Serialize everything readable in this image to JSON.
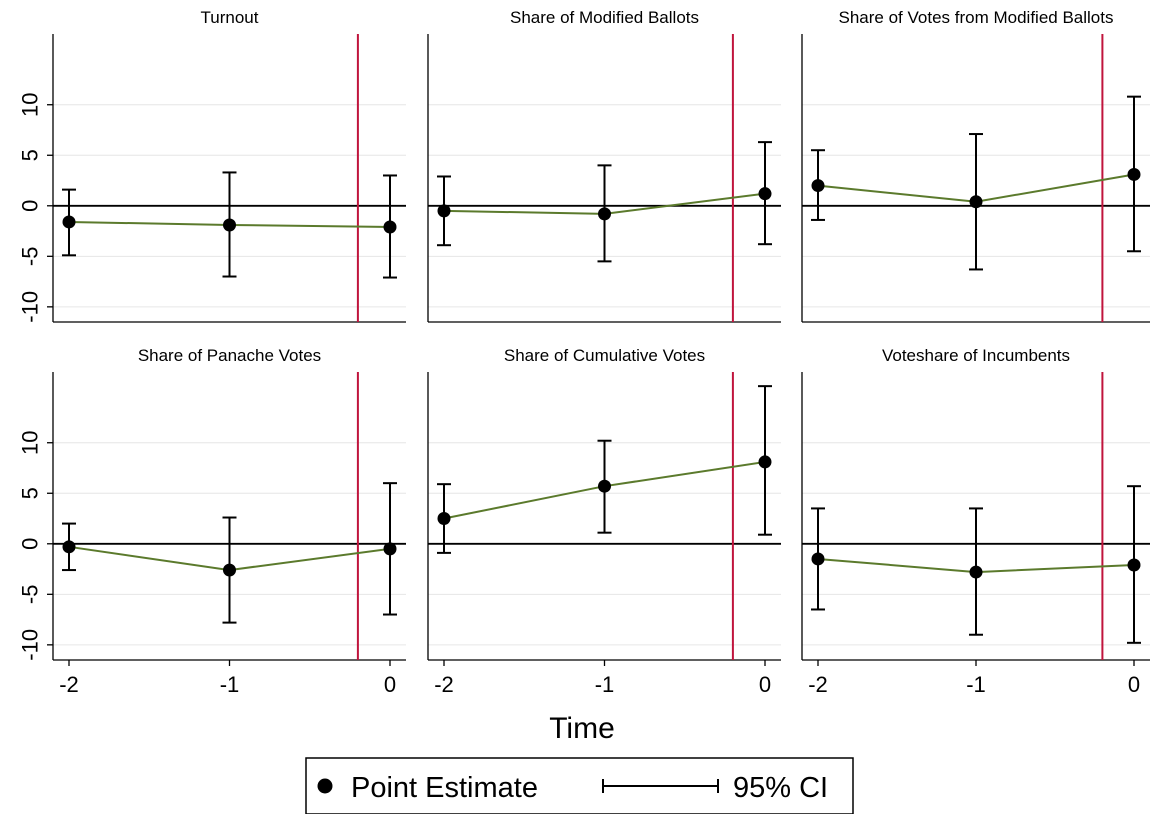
{
  "chart_data": {
    "type": "line",
    "xlabel": "Time",
    "ylabel": "",
    "x_ticks": [
      "-2",
      "-1",
      "0"
    ],
    "y_ticks": [
      "-10",
      "-5",
      "0",
      "5",
      "10"
    ],
    "ylim": [
      -11.5,
      17
    ],
    "reference_vertical_line_x": -0.2,
    "reference_horizontal_line_y": 0,
    "colors": {
      "line": "#5b7a2c",
      "vline": "#c0143c",
      "grid": "#e6e6e6",
      "ci": "#000000",
      "point": "#000000"
    },
    "legend": {
      "point_label": "Point Estimate",
      "ci_label": "95% CI",
      "placement": "bottom-center"
    },
    "panels": [
      {
        "title": "Turnout",
        "x": [
          -2,
          -1,
          0
        ],
        "y": [
          -1.6,
          -1.9,
          -2.1
        ],
        "ci_low": [
          -4.9,
          -7.0,
          -7.1
        ],
        "ci_high": [
          1.6,
          3.3,
          3.0
        ]
      },
      {
        "title": "Share of Modified Ballots",
        "x": [
          -2,
          -1,
          0
        ],
        "y": [
          -0.5,
          -0.8,
          1.2
        ],
        "ci_low": [
          -3.9,
          -5.5,
          -3.8
        ],
        "ci_high": [
          2.9,
          4.0,
          6.3
        ]
      },
      {
        "title": "Share of Votes from Modified Ballots",
        "x": [
          -2,
          -1,
          0
        ],
        "y": [
          2.0,
          0.4,
          3.1
        ],
        "ci_low": [
          -1.4,
          -6.3,
          -4.5
        ],
        "ci_high": [
          5.5,
          7.1,
          10.8
        ]
      },
      {
        "title": "Share of Panache Votes",
        "x": [
          -2,
          -1,
          0
        ],
        "y": [
          -0.3,
          -2.6,
          -0.5
        ],
        "ci_low": [
          -2.6,
          -7.8,
          -7.0
        ],
        "ci_high": [
          2.0,
          2.6,
          6.0
        ]
      },
      {
        "title": "Share of Cumulative Votes",
        "x": [
          -2,
          -1,
          0
        ],
        "y": [
          2.5,
          5.7,
          8.1
        ],
        "ci_low": [
          -0.9,
          1.1,
          0.9
        ],
        "ci_high": [
          5.9,
          10.2,
          15.6
        ]
      },
      {
        "title": "Voteshare of Incumbents",
        "x": [
          -2,
          -1,
          0
        ],
        "y": [
          -1.5,
          -2.8,
          -2.1
        ],
        "ci_low": [
          -6.5,
          -9.0,
          -9.8
        ],
        "ci_high": [
          3.5,
          3.5,
          5.7
        ]
      }
    ]
  }
}
